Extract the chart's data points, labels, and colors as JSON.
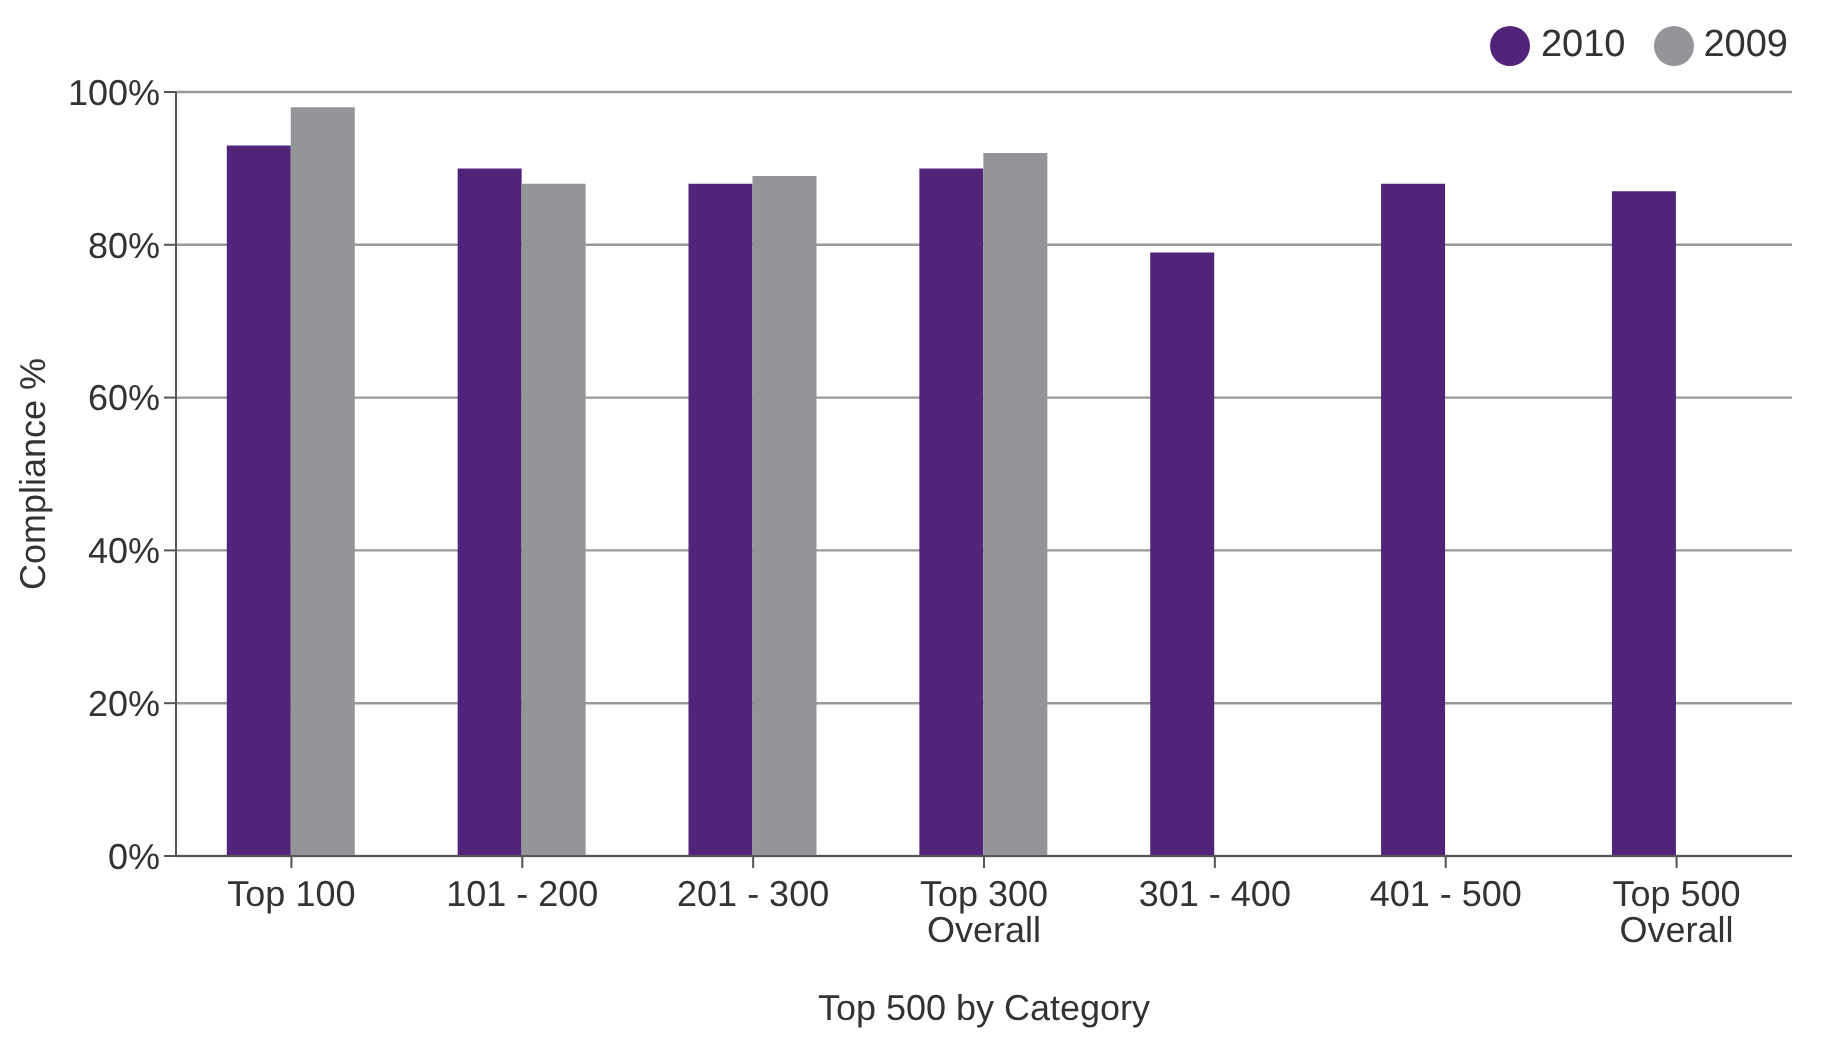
{
  "chart_data": {
    "type": "bar",
    "xlabel": "Top 500 by Category",
    "ylabel": "Compliance %",
    "categories": [
      "Top 100",
      "101 - 200",
      "201 - 300",
      "Top 300 Overall",
      "301 - 400",
      "401 - 500",
      "Top 500 Overall"
    ],
    "series": [
      {
        "name": "2010",
        "color": "#51247a",
        "values": [
          93,
          90,
          88,
          90,
          79,
          88,
          87
        ]
      },
      {
        "name": "2009",
        "color": "#939598",
        "values": [
          98,
          88,
          89,
          92,
          null,
          null,
          null
        ]
      }
    ],
    "ylim": [
      0,
      100
    ],
    "yticks": [
      {
        "value": 0,
        "label": "0%"
      },
      {
        "value": 20,
        "label": "20%"
      },
      {
        "value": 40,
        "label": "40%"
      },
      {
        "value": 60,
        "label": "60%"
      },
      {
        "value": 80,
        "label": "80%"
      },
      {
        "value": 100,
        "label": "100%"
      }
    ],
    "grid": "y",
    "legend": "top right"
  }
}
